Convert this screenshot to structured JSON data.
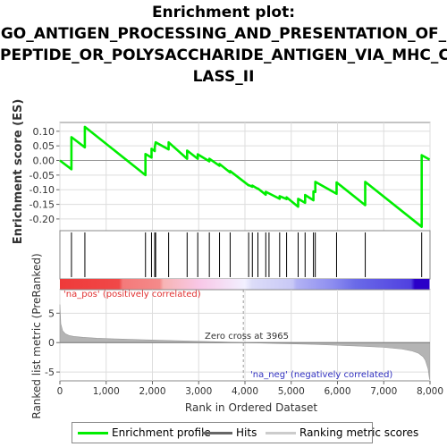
{
  "title_lines": [
    "Enrichment plot:",
    "GO_ANTIGEN_PROCESSING_AND_PRESENTATION_OF_",
    "PEPTIDE_OR_POLYSACCHARIDE_ANTIGEN_VIA_MHC_C",
    "LASS_II"
  ],
  "labels": {
    "es_ylabel": "Enrichment score (ES)",
    "metric_ylabel": "Ranked list metric (PreRanked)",
    "xlabel": "Rank in Ordered Dataset",
    "na_pos": "'na_pos' (positively correlated)",
    "na_neg": "'na_neg' (negatively correlated)",
    "zero_cross": "Zero cross at 3965"
  },
  "legend": {
    "enrichment_profile": "Enrichment profile",
    "hits": "Hits",
    "ranking_metric": "Ranking metric scores"
  },
  "colors": {
    "enrichment_line": "#00ee00",
    "hits": "#000000",
    "metric_fill": "#b4b4b4",
    "pos_strong": "#ee1c1c",
    "neg_strong": "#2a00c8"
  },
  "chart_data": [
    {
      "type": "line",
      "name": "es-panel",
      "xlim": [
        0,
        8000
      ],
      "ylim": [
        -0.24,
        0.13
      ],
      "yticks": [
        0.1,
        0.05,
        0.0,
        -0.05,
        -0.1,
        -0.15,
        -0.2
      ],
      "ytick_labels": [
        "0.10",
        "0.05",
        "0.00",
        "-0.05",
        "-0.10",
        "-0.15",
        "-0.20"
      ],
      "grid": true,
      "series": [
        {
          "name": "Enrichment profile",
          "x": [
            0,
            250,
            250,
            540,
            540,
            1850,
            1850,
            1980,
            1980,
            2050,
            2050,
            2070,
            2070,
            2350,
            2350,
            2750,
            2750,
            2980,
            2980,
            3230,
            3230,
            3450,
            3450,
            3680,
            3680,
            4080,
            4080,
            4160,
            4160,
            4280,
            4280,
            4450,
            4450,
            4750,
            4750,
            4900,
            4900,
            5150,
            5150,
            5300,
            5300,
            5480,
            5480,
            5520,
            5520,
            5980,
            5980,
            6600,
            6600,
            7820,
            7820,
            7990
          ],
          "y": [
            0.0,
            -0.03,
            0.08,
            0.045,
            0.115,
            -0.05,
            0.022,
            0.01,
            0.04,
            0.032,
            0.045,
            0.062,
            0.062,
            0.038,
            0.062,
            0.006,
            0.034,
            0.006,
            0.021,
            -0.003,
            0.006,
            -0.018,
            -0.012,
            -0.041,
            -0.036,
            -0.085,
            -0.084,
            -0.09,
            -0.086,
            -0.097,
            -0.096,
            -0.117,
            -0.107,
            -0.131,
            -0.122,
            -0.132,
            -0.126,
            -0.158,
            -0.131,
            -0.145,
            -0.118,
            -0.136,
            -0.106,
            -0.108,
            -0.073,
            -0.114,
            -0.075,
            -0.153,
            -0.073,
            -0.227,
            0.018,
            0.003
          ]
        }
      ]
    },
    {
      "type": "bar",
      "name": "hits-panel",
      "series": [
        {
          "name": "Hits",
          "x": [
            250,
            540,
            1850,
            1980,
            2050,
            2070,
            2350,
            2750,
            2980,
            3230,
            3450,
            3680,
            4080,
            4160,
            4280,
            4450,
            4520,
            4750,
            4900,
            5150,
            5300,
            5480,
            5520,
            5980,
            6600,
            7820
          ]
        }
      ]
    },
    {
      "type": "area",
      "name": "metric-panel",
      "xlim": [
        0,
        8000
      ],
      "ylim": [
        -6.5,
        9
      ],
      "yticks": [
        5,
        0,
        -5
      ],
      "ytick_labels": [
        "5",
        "0",
        "-5"
      ],
      "xticks": [
        0,
        1000,
        2000,
        3000,
        4000,
        5000,
        6000,
        7000,
        8000
      ],
      "xtick_labels": [
        "0",
        "1,000",
        "2,000",
        "3,000",
        "4,000",
        "5,000",
        "6,000",
        "7,000",
        "8,000"
      ],
      "zero_cross_rank": 3965,
      "grid": true,
      "series": [
        {
          "name": "Ranking metric scores",
          "x": [
            0,
            20,
            60,
            120,
            200,
            300,
            500,
            800,
            1200,
            1800,
            2500,
            3200,
            3965,
            4500,
            5500,
            6500,
            7000,
            7400,
            7600,
            7750,
            7850,
            7900,
            7960,
            7990
          ],
          "y": [
            6.5,
            3.2,
            2.0,
            1.5,
            1.2,
            1.05,
            0.9,
            0.75,
            0.62,
            0.48,
            0.33,
            0.18,
            0.0,
            -0.1,
            -0.3,
            -0.6,
            -0.8,
            -1.1,
            -1.4,
            -1.8,
            -2.4,
            -3.0,
            -4.5,
            -6.3
          ]
        }
      ]
    }
  ]
}
